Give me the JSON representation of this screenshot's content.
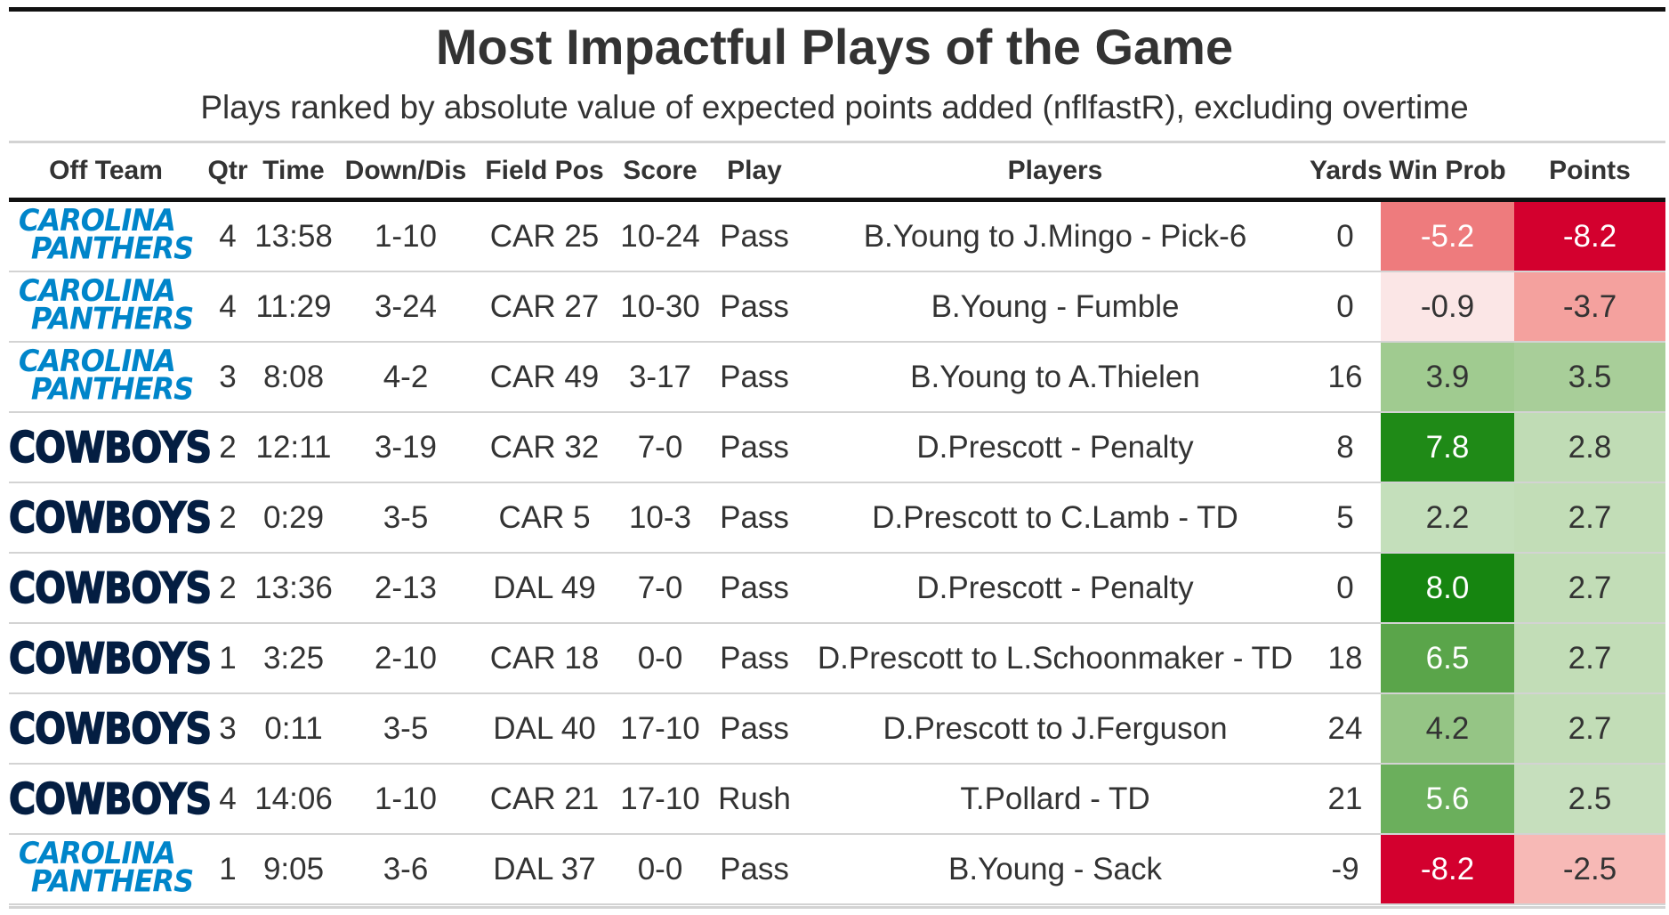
{
  "chart_data": {
    "type": "table",
    "title": "Most Impactful Plays of the Game",
    "subtitle": "Plays ranked by absolute value of expected points added (nflfastR), excluding overtime",
    "columns": [
      "Off Team",
      "Qtr",
      "Time",
      "Down/Dis",
      "Field Pos",
      "Score",
      "Play",
      "Players",
      "Yards",
      "Win Prob",
      "Points"
    ],
    "team_logos": {
      "CAR": {
        "line1": "CAROLINA",
        "line2": "PANTHERS",
        "color": "#0085CA"
      },
      "DAL": {
        "text": "COWBOYS",
        "color": "#041E42"
      }
    },
    "rows": [
      {
        "team": "CAR",
        "qtr": "4",
        "time": "13:58",
        "down": "1-10",
        "field_pos": "CAR 25",
        "score": "10-24",
        "play": "Pass",
        "players": "B.Young to J.Mingo - Pick-6",
        "yards": "0",
        "win_prob": "-5.2",
        "points": "-8.2"
      },
      {
        "team": "CAR",
        "qtr": "4",
        "time": "11:29",
        "down": "3-24",
        "field_pos": "CAR 27",
        "score": "10-30",
        "play": "Pass",
        "players": "B.Young - Fumble",
        "yards": "0",
        "win_prob": "-0.9",
        "points": "-3.7"
      },
      {
        "team": "CAR",
        "qtr": "3",
        "time": "8:08",
        "down": "4-2",
        "field_pos": "CAR 49",
        "score": "3-17",
        "play": "Pass",
        "players": "B.Young to A.Thielen",
        "yards": "16",
        "win_prob": "3.9",
        "points": "3.5"
      },
      {
        "team": "DAL",
        "qtr": "2",
        "time": "12:11",
        "down": "3-19",
        "field_pos": "CAR 32",
        "score": "7-0",
        "play": "Pass",
        "players": "D.Prescott - Penalty",
        "yards": "8",
        "win_prob": "7.8",
        "points": "2.8"
      },
      {
        "team": "DAL",
        "qtr": "2",
        "time": "0:29",
        "down": "3-5",
        "field_pos": "CAR 5",
        "score": "10-3",
        "play": "Pass",
        "players": "D.Prescott to C.Lamb - TD",
        "yards": "5",
        "win_prob": "2.2",
        "points": "2.7"
      },
      {
        "team": "DAL",
        "qtr": "2",
        "time": "13:36",
        "down": "2-13",
        "field_pos": "DAL 49",
        "score": "7-0",
        "play": "Pass",
        "players": "D.Prescott - Penalty",
        "yards": "0",
        "win_prob": "8.0",
        "points": "2.7"
      },
      {
        "team": "DAL",
        "qtr": "1",
        "time": "3:25",
        "down": "2-10",
        "field_pos": "CAR 18",
        "score": "0-0",
        "play": "Pass",
        "players": "D.Prescott to L.Schoonmaker - TD",
        "yards": "18",
        "win_prob": "6.5",
        "points": "2.7"
      },
      {
        "team": "DAL",
        "qtr": "3",
        "time": "0:11",
        "down": "3-5",
        "field_pos": "DAL 40",
        "score": "17-10",
        "play": "Pass",
        "players": "D.Prescott to J.Ferguson",
        "yards": "24",
        "win_prob": "4.2",
        "points": "2.7"
      },
      {
        "team": "DAL",
        "qtr": "4",
        "time": "14:06",
        "down": "1-10",
        "field_pos": "CAR 21",
        "score": "17-10",
        "play": "Rush",
        "players": "T.Pollard - TD",
        "yards": "21",
        "win_prob": "5.6",
        "points": "2.5"
      },
      {
        "team": "CAR",
        "qtr": "1",
        "time": "9:05",
        "down": "3-6",
        "field_pos": "DAL 37",
        "score": "0-0",
        "play": "Pass",
        "players": "B.Young - Sack",
        "yards": "-9",
        "win_prob": "-8.2",
        "points": "-2.5"
      }
    ],
    "heat_colors": {
      "win_prob": [
        "#EE7B7D",
        "#FBE6E6",
        "#A0CB90",
        "#1F8A17",
        "#C4DFBB",
        "#168510",
        "#5AA54A",
        "#95C585",
        "#6BAF5C",
        "#D3002E"
      ],
      "points": [
        "#D3002E",
        "#F4A19E",
        "#A8CE99",
        "#C0DCB5",
        "#C2DDB7",
        "#C2DDB7",
        "#C2DDB7",
        "#C2DDB7",
        "#C6DFBD",
        "#F7B9B6"
      ]
    },
    "heat_light_text": {
      "win_prob": [
        true,
        false,
        false,
        true,
        false,
        true,
        true,
        false,
        true,
        true
      ],
      "points": [
        true,
        false,
        false,
        false,
        false,
        false,
        false,
        false,
        false,
        false
      ]
    }
  }
}
